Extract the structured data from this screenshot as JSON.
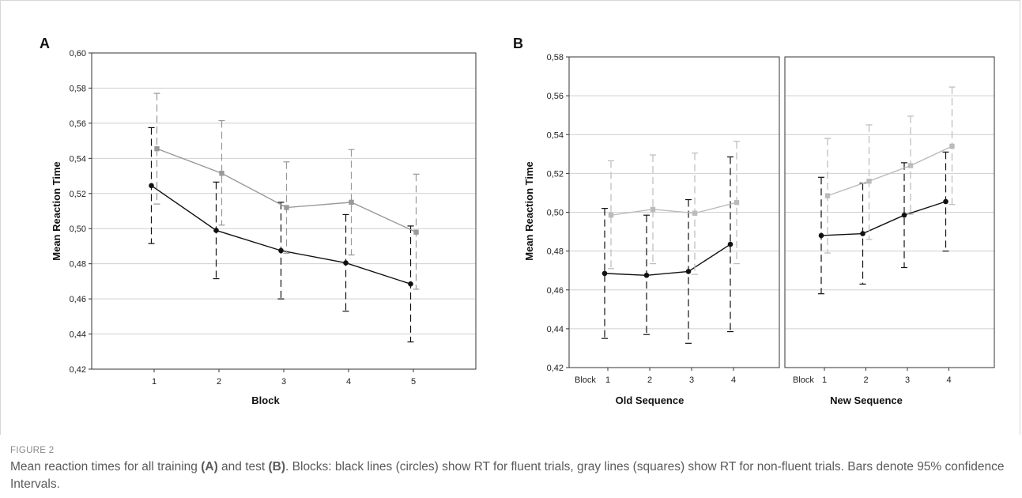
{
  "figure": {
    "label": "FIGURE 2",
    "caption": {
      "part1": "Mean reaction times for all training ",
      "ref_a": "(A)",
      "part2": " and test ",
      "ref_b": "(B)",
      "part3": ". Blocks: black lines (circles) show RT for fluent trials, gray lines (squares) show RT for non-fluent trials. Bars denote 95% confidence Intervals."
    }
  },
  "chart_data": [
    {
      "panel_label": "A",
      "type": "line",
      "xlabel": "Block",
      "ylabel": "Mean Reaction Time",
      "categories": [
        "1",
        "2",
        "3",
        "4",
        "5"
      ],
      "ylim": [
        0.42,
        0.6
      ],
      "yticks": [
        "0,42",
        "0,44",
        "0,46",
        "0,48",
        "0,50",
        "0,52",
        "0,54",
        "0,56",
        "0,58",
        "0,60"
      ],
      "grid": true,
      "series": [
        {
          "marker": "circle",
          "color": "#111111",
          "values": [
            0.5245,
            0.499,
            0.4875,
            0.4805,
            0.4685
          ],
          "ci_low": [
            0.4915,
            0.4715,
            0.46,
            0.453,
            0.4355
          ],
          "ci_high": [
            0.5575,
            0.5265,
            0.515,
            0.508,
            0.5015
          ]
        },
        {
          "marker": "square",
          "color": "#999999",
          "values": [
            0.5455,
            0.5315,
            0.512,
            0.515,
            0.498
          ],
          "ci_low": [
            0.514,
            0.502,
            0.486,
            0.485,
            0.4655
          ],
          "ci_high": [
            0.577,
            0.5615,
            0.538,
            0.545,
            0.531
          ]
        }
      ]
    },
    {
      "panel_label": "B",
      "type": "line",
      "ylabel": "Mean Reaction Time",
      "ylim": [
        0.42,
        0.58
      ],
      "yticks": [
        "0,42",
        "0,44",
        "0,46",
        "0,48",
        "0,50",
        "0,52",
        "0,54",
        "0,56",
        "0,58"
      ],
      "grid": true,
      "facets": [
        {
          "title": "Old Sequence",
          "axis_word": "Block",
          "categories": [
            "1",
            "2",
            "3",
            "4"
          ],
          "series": [
            {
              "marker": "circle",
              "color": "#111111",
              "values": [
                0.4685,
                0.4675,
                0.4695,
                0.4835
              ],
              "ci_low": [
                0.435,
                0.437,
                0.4325,
                0.4385
              ],
              "ci_high": [
                0.502,
                0.4985,
                0.5065,
                0.5285
              ]
            },
            {
              "marker": "square",
              "color": "#bbbbbb",
              "values": [
                0.4985,
                0.5015,
                0.4995,
                0.505
              ],
              "ci_low": [
                0.471,
                0.4735,
                0.468,
                0.4735
              ],
              "ci_high": [
                0.5265,
                0.5295,
                0.5305,
                0.5365
              ]
            }
          ]
        },
        {
          "title": "New Sequence",
          "axis_word": "Block",
          "categories": [
            "1",
            "2",
            "3",
            "4"
          ],
          "series": [
            {
              "marker": "circle",
              "color": "#111111",
              "values": [
                0.488,
                0.489,
                0.4985,
                0.5055
              ],
              "ci_low": [
                0.458,
                0.463,
                0.4715,
                0.48
              ],
              "ci_high": [
                0.518,
                0.515,
                0.5255,
                0.531
              ]
            },
            {
              "marker": "square",
              "color": "#bbbbbb",
              "values": [
                0.5085,
                0.516,
                0.524,
                0.534
              ],
              "ci_low": [
                0.479,
                0.486,
                0.499,
                0.504
              ],
              "ci_high": [
                0.538,
                0.545,
                0.5495,
                0.5645
              ]
            }
          ]
        }
      ]
    }
  ]
}
